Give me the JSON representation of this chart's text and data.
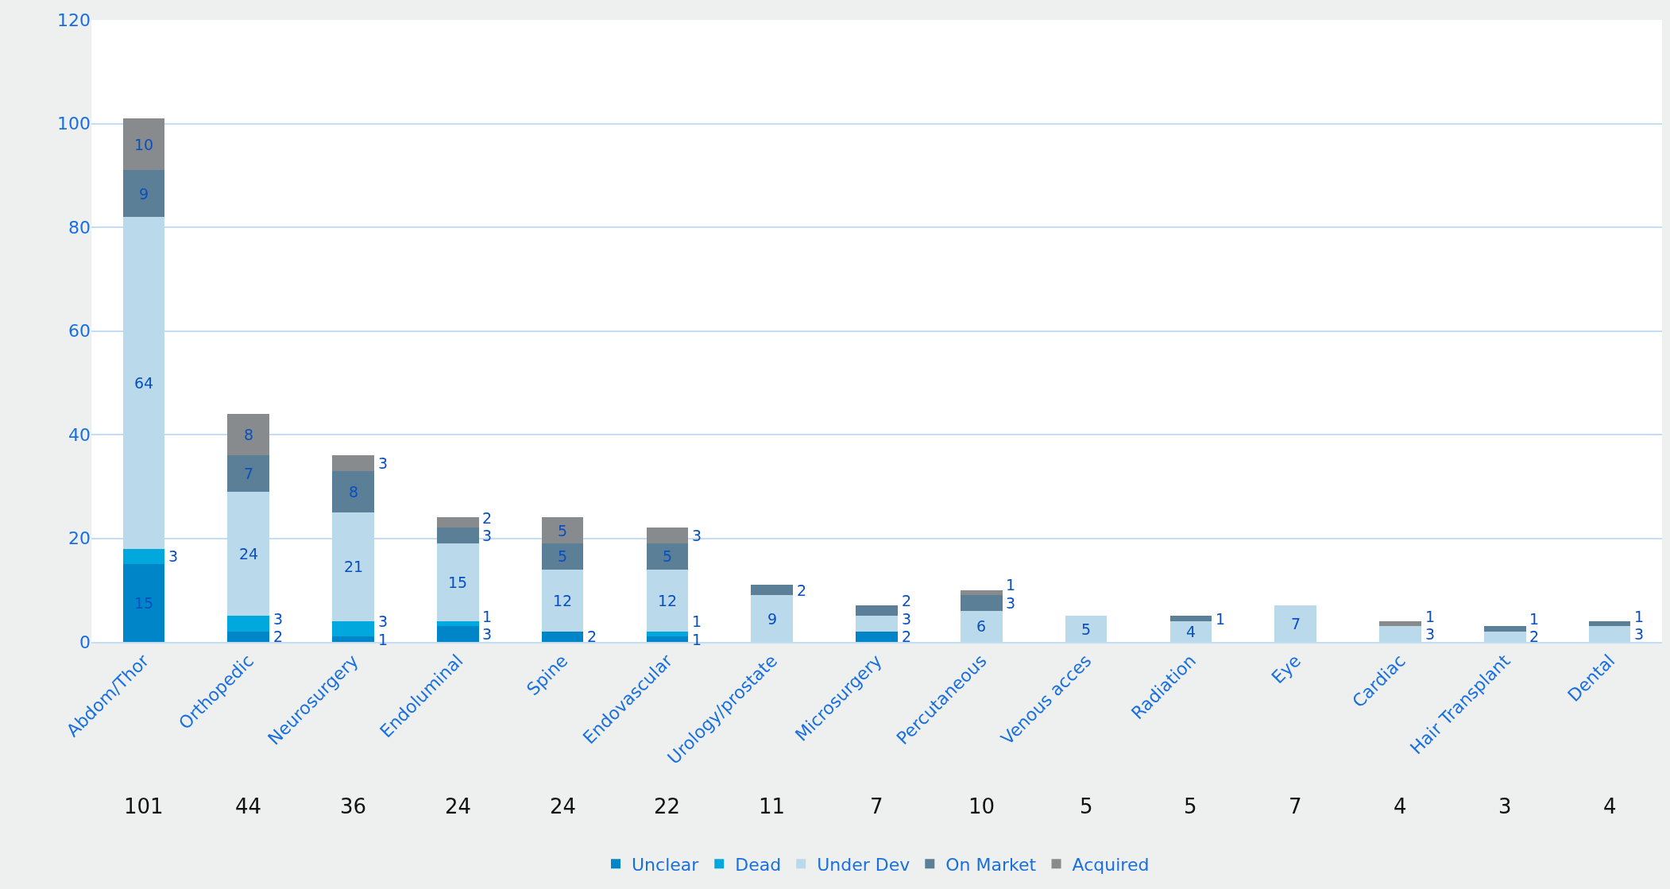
{
  "chart_data": {
    "type": "bar",
    "stacked": true,
    "data_labels": true,
    "grid": "y",
    "legend": "bottom",
    "categories": [
      "Abdom/Thor",
      "Orthopedic",
      "Neurosurgery",
      "Endoluminal",
      "Spine",
      "Endovascular",
      "Urology/prostate",
      "Microsurgery",
      "Percutaneous",
      "Venous acces",
      "Radiation",
      "Eye",
      "Cardiac",
      "Hair Transplant",
      "Dental"
    ],
    "series": [
      {
        "name": "Unclear",
        "color": "#0085c8",
        "values": [
          15,
          2,
          1,
          3,
          2,
          1,
          null,
          2,
          null,
          null,
          null,
          null,
          null,
          null,
          null
        ]
      },
      {
        "name": "Dead",
        "color": "#00a8de",
        "values": [
          3,
          3,
          3,
          1,
          null,
          1,
          null,
          null,
          null,
          null,
          null,
          null,
          null,
          null,
          null
        ]
      },
      {
        "name": "Under Dev",
        "color": "#bad9ea",
        "values": [
          64,
          24,
          21,
          15,
          12,
          12,
          9,
          3,
          6,
          5,
          4,
          7,
          3,
          2,
          3
        ]
      },
      {
        "name": "On Market",
        "color": "#5b7f96",
        "values": [
          9,
          7,
          8,
          3,
          5,
          5,
          2,
          2,
          3,
          null,
          1,
          null,
          null,
          1,
          1
        ]
      },
      {
        "name": "Acquired",
        "color": "#888b8e",
        "values": [
          10,
          8,
          3,
          2,
          5,
          3,
          null,
          null,
          1,
          null,
          null,
          null,
          1,
          null,
          null
        ]
      }
    ],
    "annotations": [
      "101",
      "44",
      "36",
      "24",
      "24",
      "22",
      "11",
      "7",
      "10",
      "5",
      "5",
      "7",
      "4",
      "3",
      "4"
    ],
    "ylim": [
      0,
      120
    ],
    "yticks": [
      0,
      20,
      40,
      60,
      80,
      100,
      120
    ]
  }
}
